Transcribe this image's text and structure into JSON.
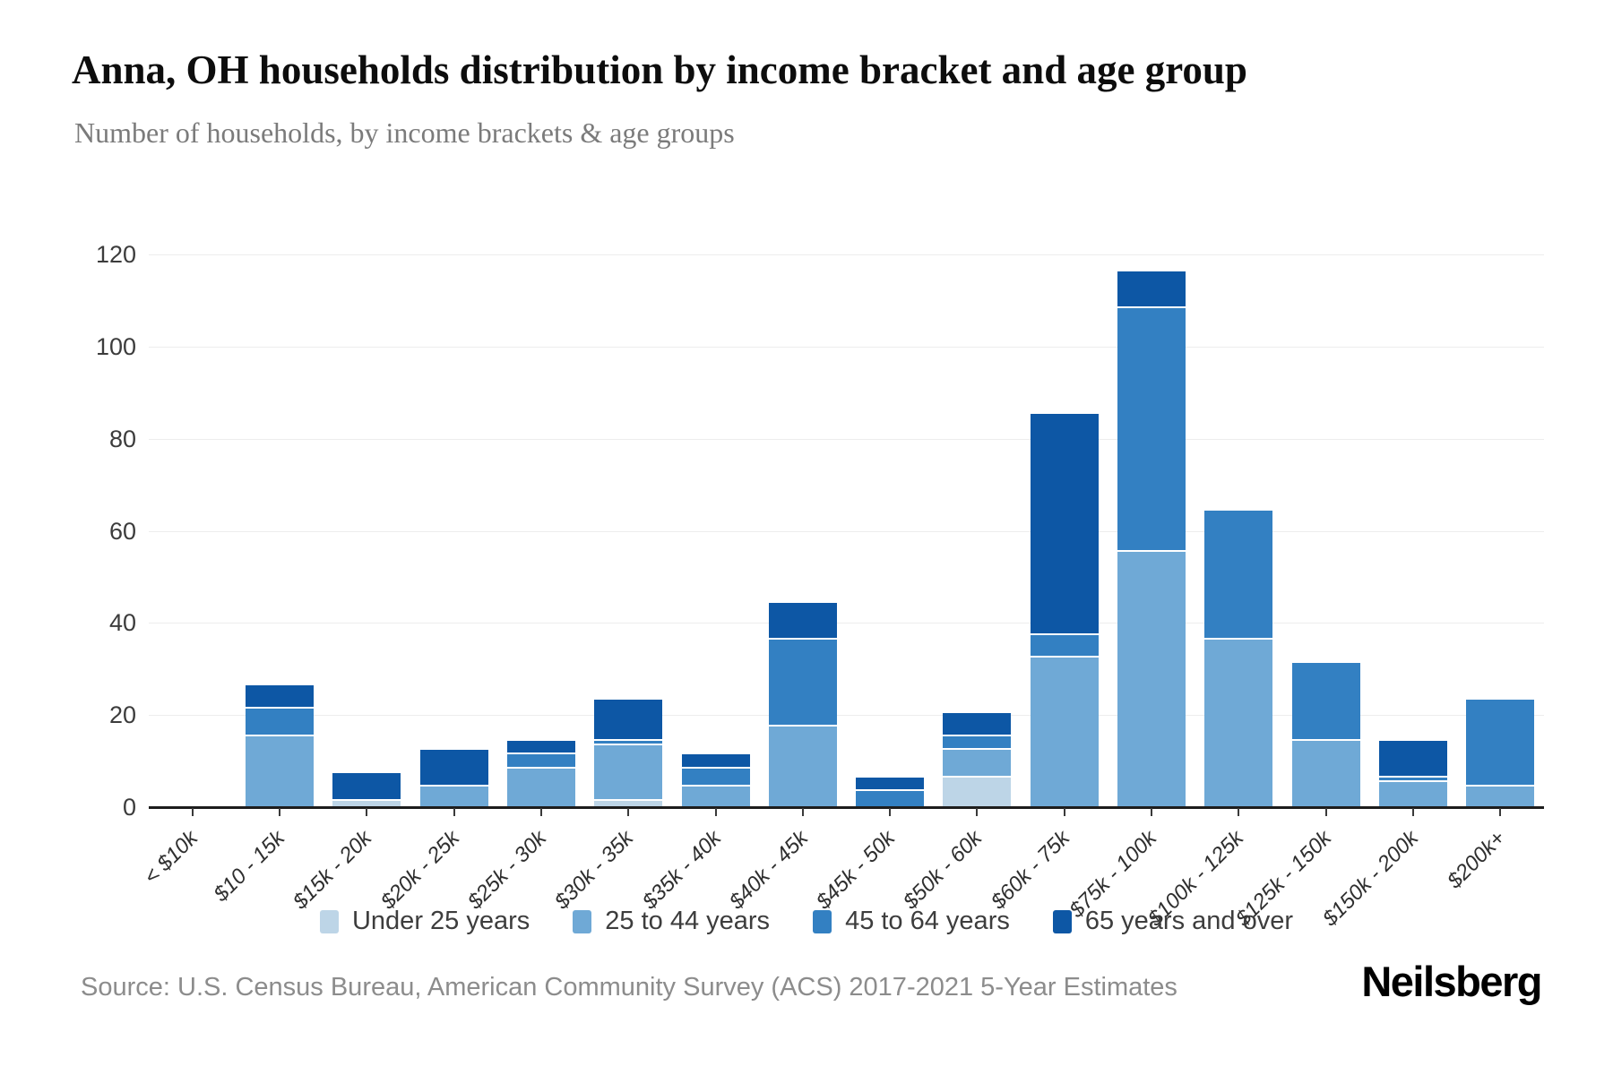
{
  "header": {
    "title": "Anna, OH households distribution by income bracket and age group",
    "subtitle": "Number of households, by income brackets & age groups"
  },
  "footer": {
    "source": "Source: U.S. Census Bureau, American Community Survey (ACS) 2017-2021 5-Year Estimates",
    "logo": "Neilsberg"
  },
  "chart_data": {
    "type": "bar",
    "stacked": true,
    "title": "Anna, OH households distribution by income bracket and age group",
    "subtitle": "Number of households, by income brackets & age groups",
    "xlabel": "",
    "ylabel": "Number of households",
    "ylim": [
      0,
      120
    ],
    "yticks": [
      0,
      20,
      40,
      60,
      80,
      100,
      120
    ],
    "grid": true,
    "legend_position": "bottom",
    "categories": [
      "< $10k",
      "$10 - 15k",
      "$15k - 20k",
      "$20k - 25k",
      "$25k - 30k",
      "$30k - 35k",
      "$35k - 40k",
      "$40k - 45k",
      "$45k - 50k",
      "$50k - 60k",
      "$60k - 75k",
      "$75k - 100k",
      "$100k - 125k",
      "$125k - 150k",
      "$150k - 200k",
      "$200k+"
    ],
    "series": [
      {
        "name": "Under 25 years",
        "color": "#bdd5e7",
        "values": [
          0,
          0,
          2,
          0,
          0,
          2,
          0,
          0,
          0,
          7,
          0,
          0,
          0,
          0,
          0,
          0
        ]
      },
      {
        "name": "25 to 44 years",
        "color": "#6fa9d6",
        "values": [
          0,
          16,
          0,
          5,
          9,
          12,
          5,
          18,
          0,
          6,
          33,
          56,
          37,
          15,
          6,
          5
        ]
      },
      {
        "name": "45 to 64 years",
        "color": "#3380c2",
        "values": [
          0,
          6,
          0,
          0,
          3,
          1,
          4,
          19,
          4,
          3,
          5,
          53,
          28,
          17,
          1,
          19
        ]
      },
      {
        "name": "65 years and over",
        "color": "#0d57a5",
        "values": [
          0,
          5,
          6,
          8,
          3,
          9,
          3,
          8,
          3,
          5,
          48,
          8,
          0,
          0,
          8,
          0
        ]
      }
    ],
    "totals": [
      0,
      27,
      8,
      13,
      15,
      24,
      12,
      45,
      7,
      21,
      86,
      117,
      65,
      32,
      15,
      24
    ]
  }
}
